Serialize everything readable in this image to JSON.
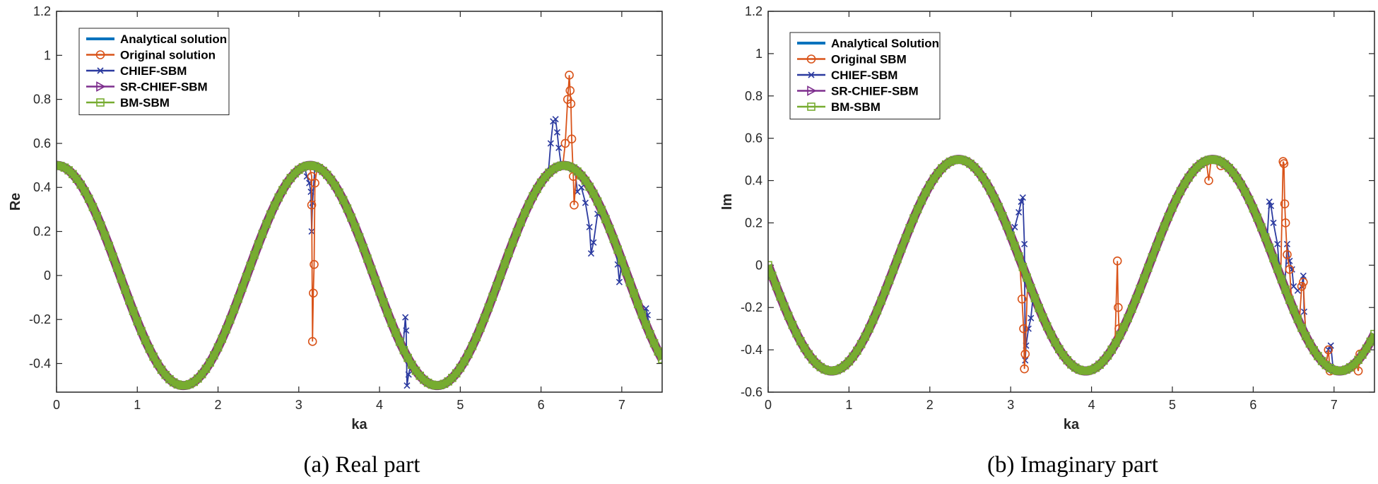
{
  "colors": {
    "analytical": "#0072BD",
    "original": "#D95319",
    "chief": "#2B3A9F",
    "srchief": "#7E2F8E",
    "bm": "#77AC30",
    "axis": "#262626"
  },
  "chart_data": [
    {
      "type": "line",
      "caption": "(a) Real part",
      "xlabel": "ka",
      "ylabel": "Re",
      "xlim": [
        0,
        7.5
      ],
      "ylim": [
        -0.53,
        1.2
      ],
      "xticks": [
        0,
        1,
        2,
        3,
        4,
        5,
        6,
        7
      ],
      "yticks": [
        -0.4,
        -0.2,
        0,
        0.2,
        0.4,
        0.6,
        0.8,
        1,
        1.2
      ],
      "ytick_labels": [
        "-0.4",
        "-0.2",
        "0",
        "0.2",
        "0.4",
        "0.6",
        "0.8",
        "1",
        "1.2"
      ],
      "legend_position": "top-left",
      "series": [
        {
          "name": "Analytical solution",
          "key": "analytical",
          "marker": "none",
          "function": "0.5*cos(2*ka)"
        },
        {
          "name": "Original solution",
          "key": "original",
          "marker": "circle",
          "spikes": [
            [
              3.16,
              0.45
            ],
            [
              3.16,
              0.32
            ],
            [
              3.17,
              -0.3
            ],
            [
              3.18,
              -0.08
            ],
            [
              3.19,
              0.05
            ],
            [
              3.2,
              0.42
            ],
            [
              6.3,
              0.6
            ],
            [
              6.33,
              0.8
            ],
            [
              6.35,
              0.91
            ],
            [
              6.36,
              0.84
            ],
            [
              6.37,
              0.78
            ],
            [
              6.38,
              0.62
            ],
            [
              6.4,
              0.45
            ],
            [
              6.41,
              0.32
            ]
          ]
        },
        {
          "name": "CHIEF-SBM",
          "key": "chief",
          "marker": "x",
          "spikes": [
            [
              3.1,
              0.45
            ],
            [
              3.13,
              0.42
            ],
            [
              3.15,
              0.38
            ],
            [
              3.16,
              0.2
            ],
            [
              3.17,
              0.33
            ],
            [
              4.32,
              -0.19
            ],
            [
              4.33,
              -0.25
            ],
            [
              4.34,
              -0.5
            ],
            [
              4.36,
              -0.45
            ],
            [
              6.12,
              0.6
            ],
            [
              6.15,
              0.7
            ],
            [
              6.18,
              0.71
            ],
            [
              6.2,
              0.65
            ],
            [
              6.22,
              0.58
            ],
            [
              6.45,
              0.38
            ],
            [
              6.5,
              0.4
            ],
            [
              6.55,
              0.33
            ],
            [
              6.6,
              0.22
            ],
            [
              6.62,
              0.1
            ],
            [
              6.65,
              0.15
            ],
            [
              6.7,
              0.28
            ],
            [
              6.95,
              0.05
            ],
            [
              6.97,
              -0.03
            ],
            [
              7.3,
              -0.15
            ],
            [
              7.32,
              -0.18
            ]
          ]
        },
        {
          "name": "SR-CHIEF-SBM",
          "key": "srchief",
          "marker": "triangle-right",
          "function": "0.5*cos(2*ka)"
        },
        {
          "name": "BM-SBM",
          "key": "bm",
          "marker": "square",
          "function": "0.5*cos(2*ka)"
        }
      ]
    },
    {
      "type": "line",
      "caption": "(b) Imaginary part",
      "xlabel": "ka",
      "ylabel": "Im",
      "xlim": [
        0,
        7.5
      ],
      "ylim": [
        -0.6,
        1.2
      ],
      "xticks": [
        0,
        1,
        2,
        3,
        4,
        5,
        6,
        7
      ],
      "yticks": [
        -0.6,
        -0.4,
        -0.2,
        0,
        0.2,
        0.4,
        0.6,
        0.8,
        1,
        1.2
      ],
      "ytick_labels": [
        "-0.6",
        "-0.4",
        "-0.2",
        "0",
        "0.2",
        "0.4",
        "0.6",
        "0.8",
        "1",
        "1.2"
      ],
      "legend_position": "top-left",
      "series": [
        {
          "name": "Analytical Solution",
          "key": "analytical",
          "marker": "none",
          "function": "-0.5*sin(2*ka)"
        },
        {
          "name": "Original SBM",
          "key": "original",
          "marker": "circle",
          "spikes": [
            [
              3.14,
              -0.16
            ],
            [
              3.16,
              -0.3
            ],
            [
              3.17,
              -0.49
            ],
            [
              3.18,
              -0.42
            ],
            [
              4.32,
              0.02
            ],
            [
              4.33,
              -0.2
            ],
            [
              4.34,
              -0.3
            ],
            [
              5.45,
              0.4
            ],
            [
              5.6,
              0.47
            ],
            [
              6.37,
              0.49
            ],
            [
              6.38,
              0.48
            ],
            [
              6.39,
              0.29
            ],
            [
              6.4,
              0.2
            ],
            [
              6.42,
              0.05
            ],
            [
              6.45,
              -0.02
            ],
            [
              6.6,
              -0.1
            ],
            [
              6.62,
              -0.08
            ],
            [
              6.93,
              -0.4
            ],
            [
              6.95,
              -0.5
            ],
            [
              7.3,
              -0.5
            ],
            [
              7.32,
              -0.42
            ]
          ]
        },
        {
          "name": "CHIEF-SBM",
          "key": "chief",
          "marker": "x",
          "spikes": [
            [
              3.0,
              0.15
            ],
            [
              3.05,
              0.18
            ],
            [
              3.1,
              0.25
            ],
            [
              3.13,
              0.3
            ],
            [
              3.15,
              0.32
            ],
            [
              3.17,
              0.1
            ],
            [
              3.18,
              -0.45
            ],
            [
              3.19,
              -0.38
            ],
            [
              3.22,
              -0.3
            ],
            [
              3.25,
              -0.25
            ],
            [
              6.2,
              0.3
            ],
            [
              6.22,
              0.28
            ],
            [
              6.25,
              0.2
            ],
            [
              6.3,
              0.1
            ],
            [
              6.42,
              0.1
            ],
            [
              6.45,
              0.02
            ],
            [
              6.48,
              -0.02
            ],
            [
              6.5,
              -0.1
            ],
            [
              6.55,
              -0.12
            ],
            [
              6.6,
              -0.1
            ],
            [
              6.62,
              -0.05
            ],
            [
              6.63,
              -0.22
            ],
            [
              6.93,
              -0.4
            ],
            [
              6.96,
              -0.38
            ]
          ]
        },
        {
          "name": "SR-CHIEF-SBM",
          "key": "srchief",
          "marker": "triangle-right",
          "function": "-0.5*sin(2*ka)"
        },
        {
          "name": "BM-SBM",
          "key": "bm",
          "marker": "square",
          "function": "-0.5*sin(2*ka)"
        }
      ]
    }
  ]
}
